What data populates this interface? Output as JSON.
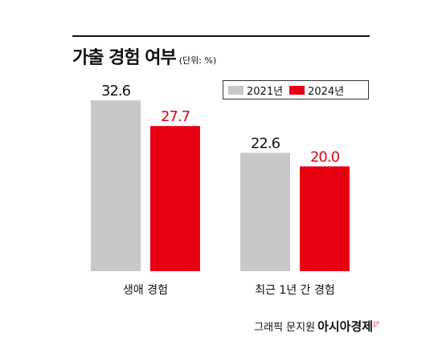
{
  "chart_data": {
    "type": "bar",
    "title": "가출 경험 여부",
    "unit_note": "(단위: %)",
    "categories": [
      "생애 경험",
      "최근 1년 간 경험"
    ],
    "series": [
      {
        "name": "2021년",
        "values": [
          32.6,
          22.6
        ],
        "color": "#c8c8c8",
        "label_color": "#111111"
      },
      {
        "name": "2024년",
        "values": [
          27.7,
          20.0
        ],
        "color": "#e60012",
        "label_color": "#e60012"
      }
    ],
    "value_labels": [
      [
        "32.6",
        "22.6"
      ],
      [
        "27.7",
        "20.0"
      ]
    ],
    "ylim": [
      0,
      40
    ],
    "grid": false,
    "legend_position": "top-right"
  },
  "credit": {
    "prefix": "그래픽 문지원",
    "brand": "아시아경제"
  }
}
